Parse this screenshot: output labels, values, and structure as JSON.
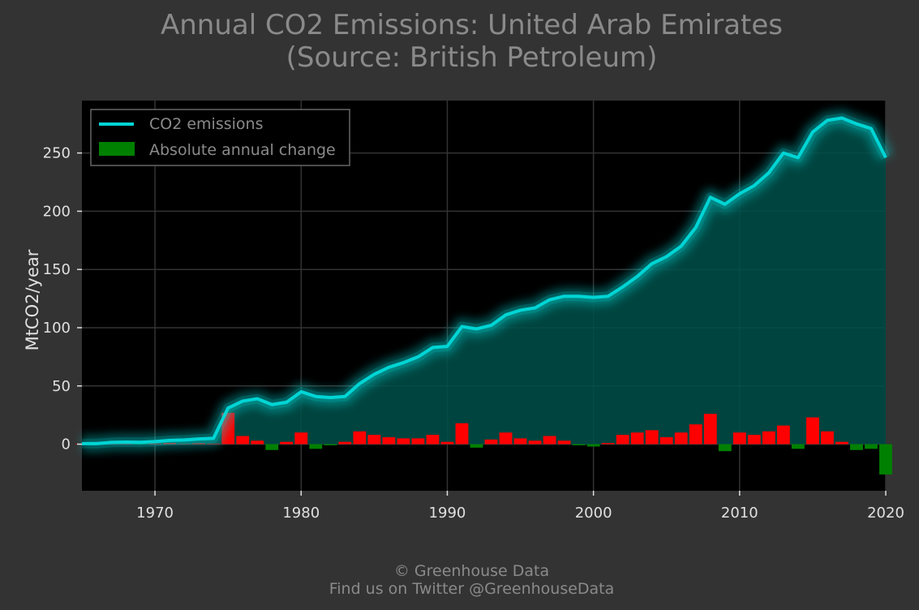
{
  "title_line1": "Annual CO2 Emissions: United Arab Emirates",
  "title_line2": "(Source: British Petroleum)",
  "footer_line1": "© Greenhouse Data",
  "footer_line2": "Find us on Twitter @GreenhouseData",
  "colors": {
    "background": "#333333",
    "plot_background": "#000000",
    "line": "#00d5d5",
    "area": "#00504a",
    "increase": "#ff0000",
    "decrease": "#008000",
    "text": "#e0e0e0",
    "title": "#8a8a8a"
  },
  "chart_data": {
    "type": "line",
    "ylabel": "MtCO2/year",
    "xlim": [
      1965,
      2020
    ],
    "ylim": [
      -40,
      295
    ],
    "xticks": [
      1970,
      1980,
      1990,
      2000,
      2010,
      2020
    ],
    "yticks": [
      0,
      50,
      100,
      150,
      200,
      250
    ],
    "grid": true,
    "legend_position": "top-left",
    "legend": [
      "CO2 emissions",
      "Absolute annual change"
    ],
    "series": [
      {
        "name": "CO2 emissions",
        "type": "line",
        "x": [
          1965,
          1966,
          1967,
          1968,
          1969,
          1970,
          1971,
          1972,
          1973,
          1974,
          1975,
          1976,
          1977,
          1978,
          1979,
          1980,
          1981,
          1982,
          1983,
          1984,
          1985,
          1986,
          1987,
          1988,
          1989,
          1990,
          1991,
          1992,
          1993,
          1994,
          1995,
          1996,
          1997,
          1998,
          1999,
          2000,
          2001,
          2002,
          2003,
          2004,
          2005,
          2006,
          2007,
          2008,
          2009,
          2010,
          2011,
          2012,
          2013,
          2014,
          2015,
          2016,
          2017,
          2018,
          2019,
          2020
        ],
        "values": [
          0.5,
          0.5,
          1.5,
          1.8,
          1.6,
          2.2,
          3.3,
          3.6,
          4.5,
          5.0,
          31,
          37,
          39,
          34,
          36,
          45,
          41,
          40,
          41,
          52,
          60,
          66,
          70,
          75,
          83,
          84,
          101,
          99,
          102,
          111,
          115,
          117,
          124,
          127,
          127,
          126,
          127,
          135,
          144,
          155,
          161,
          170,
          186,
          212,
          206,
          215,
          222,
          233,
          250,
          246,
          268,
          278,
          280,
          275,
          271,
          246
        ]
      },
      {
        "name": "Absolute annual change",
        "type": "bar",
        "x": [
          1965,
          1966,
          1967,
          1968,
          1969,
          1970,
          1971,
          1972,
          1973,
          1974,
          1975,
          1976,
          1977,
          1978,
          1979,
          1980,
          1981,
          1982,
          1983,
          1984,
          1985,
          1986,
          1987,
          1988,
          1989,
          1990,
          1991,
          1992,
          1993,
          1994,
          1995,
          1996,
          1997,
          1998,
          1999,
          2000,
          2001,
          2002,
          2003,
          2004,
          2005,
          2006,
          2007,
          2008,
          2009,
          2010,
          2011,
          2012,
          2013,
          2014,
          2015,
          2016,
          2017,
          2018,
          2019,
          2020
        ],
        "values": [
          0.4,
          0.3,
          1.0,
          0.3,
          -0.2,
          0.6,
          1.1,
          0.3,
          0.9,
          0.5,
          27,
          7,
          3,
          -5,
          2,
          10,
          -4,
          -1,
          2,
          11,
          8,
          6,
          5,
          5,
          8,
          2,
          18,
          -3,
          4,
          10,
          5,
          3,
          7,
          3,
          -1,
          -2,
          1,
          8,
          10,
          12,
          6,
          10,
          17,
          26,
          -6,
          10,
          8,
          11,
          16,
          -4,
          23,
          11,
          2,
          -5,
          -4,
          -26
        ]
      }
    ]
  }
}
